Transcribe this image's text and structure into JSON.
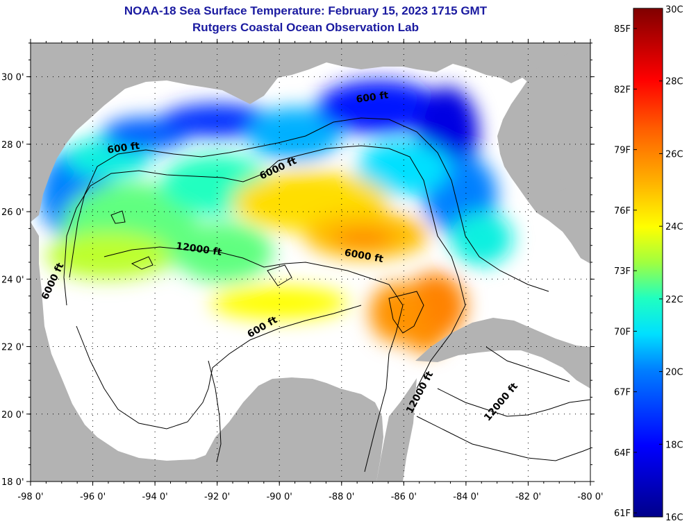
{
  "header": {
    "title": "NOAA-18 Sea Surface Temperature:  February 15, 2023 1715 GMT",
    "subtitle": "Rutgers Coastal Ocean Observation Lab"
  },
  "map": {
    "lon_range": [
      -98,
      -80
    ],
    "lat_range": [
      18,
      31
    ],
    "lon_ticks": [
      {
        "value": -98,
        "label": "-98 0'"
      },
      {
        "value": -96,
        "label": "-96 0'"
      },
      {
        "value": -94,
        "label": "-94 0'"
      },
      {
        "value": -92,
        "label": "-92 0'"
      },
      {
        "value": -90,
        "label": "-90 0'"
      },
      {
        "value": -88,
        "label": "-88 0'"
      },
      {
        "value": -86,
        "label": "-86 0'"
      },
      {
        "value": -84,
        "label": "-84 0'"
      },
      {
        "value": -82,
        "label": "-82 0'"
      },
      {
        "value": -80,
        "label": "-80 0'"
      }
    ],
    "lat_ticks": [
      {
        "value": 18,
        "label": "18 0'"
      },
      {
        "value": 20,
        "label": "20 0'"
      },
      {
        "value": 22,
        "label": "22 0'"
      },
      {
        "value": 24,
        "label": "24 0'"
      },
      {
        "value": 26,
        "label": "26 0'"
      },
      {
        "value": 28,
        "label": "28 0'"
      },
      {
        "value": 30,
        "label": "30 0'"
      }
    ],
    "land_color": "#b3b3b3",
    "no_data_color": "#ffffff",
    "contour_labels": [
      {
        "text": "600 ft",
        "lon": -95.0,
        "lat": 27.8,
        "angle": -8
      },
      {
        "text": "600 ft",
        "lon": -87.0,
        "lat": 29.3,
        "angle": -8
      },
      {
        "text": "6000 ft",
        "lon": -90.0,
        "lat": 27.2,
        "angle": -25
      },
      {
        "text": "12000 ft",
        "lon": -92.6,
        "lat": 24.8,
        "angle": 8
      },
      {
        "text": "6000 ft",
        "lon": -87.3,
        "lat": 24.6,
        "angle": 10
      },
      {
        "text": "6000 ft",
        "lon": -97.2,
        "lat": 23.9,
        "angle": -65
      },
      {
        "text": "600 ft",
        "lon": -90.5,
        "lat": 22.5,
        "angle": -30
      },
      {
        "text": "12000 ft",
        "lon": -85.4,
        "lat": 20.6,
        "angle": -62
      },
      {
        "text": "12000 ft",
        "lon": -82.8,
        "lat": 20.3,
        "angle": -50
      }
    ],
    "sst_patches": [
      {
        "lon": -96.5,
        "lat": 26.5,
        "rx": 1.2,
        "ry": 1.4,
        "temp": 20.0
      },
      {
        "lon": -95.5,
        "lat": 27.6,
        "rx": 1.4,
        "ry": 0.6,
        "temp": 21.5
      },
      {
        "lon": -94.3,
        "lat": 28.3,
        "rx": 1.4,
        "ry": 0.5,
        "temp": 19.5
      },
      {
        "lon": -92.0,
        "lat": 28.7,
        "rx": 1.8,
        "ry": 0.5,
        "temp": 18.8
      },
      {
        "lon": -89.5,
        "lat": 28.3,
        "rx": 1.5,
        "ry": 0.8,
        "temp": 20.5
      },
      {
        "lon": -86.8,
        "lat": 29.1,
        "rx": 2.0,
        "ry": 0.8,
        "temp": 18.3
      },
      {
        "lon": -84.6,
        "lat": 28.3,
        "rx": 1.0,
        "ry": 1.4,
        "temp": 17.5
      },
      {
        "lon": -84.2,
        "lat": 26.5,
        "rx": 1.2,
        "ry": 1.2,
        "temp": 20.0
      },
      {
        "lon": -86.0,
        "lat": 27.3,
        "rx": 1.5,
        "ry": 0.8,
        "temp": 21.0
      },
      {
        "lon": -94.8,
        "lat": 25.5,
        "rx": 2.2,
        "ry": 1.4,
        "temp": 22.5
      },
      {
        "lon": -95.5,
        "lat": 24.7,
        "rx": 2.0,
        "ry": 0.7,
        "temp": 23.3
      },
      {
        "lon": -92.0,
        "lat": 26.8,
        "rx": 1.8,
        "ry": 0.9,
        "temp": 22.0
      },
      {
        "lon": -91.8,
        "lat": 24.8,
        "rx": 1.6,
        "ry": 0.9,
        "temp": 22.5
      },
      {
        "lon": -89.0,
        "lat": 26.3,
        "rx": 2.5,
        "ry": 0.9,
        "temp": 24.5
      },
      {
        "lon": -87.2,
        "lat": 25.3,
        "rx": 2.0,
        "ry": 0.7,
        "temp": 25.0
      },
      {
        "lon": -87.3,
        "lat": 25.2,
        "rx": 1.0,
        "ry": 0.2,
        "temp": 26.3
      },
      {
        "lon": -90.0,
        "lat": 23.3,
        "rx": 2.2,
        "ry": 0.5,
        "temp": 24.0
      },
      {
        "lon": -85.0,
        "lat": 23.2,
        "rx": 1.0,
        "ry": 1.0,
        "temp": 26.0
      },
      {
        "lon": -86.2,
        "lat": 23.0,
        "rx": 0.9,
        "ry": 0.9,
        "temp": 25.7
      },
      {
        "lon": -85.3,
        "lat": 22.2,
        "rx": 0.6,
        "ry": 0.4,
        "temp": 25.8
      },
      {
        "lon": -83.5,
        "lat": 25.2,
        "rx": 1.0,
        "ry": 0.8,
        "temp": 21.5
      }
    ]
  },
  "colorbar": {
    "min_c": 16,
    "max_c": 30,
    "c_ticks": [
      {
        "value": 30,
        "label": "30C"
      },
      {
        "value": 28,
        "label": "28C"
      },
      {
        "value": 26,
        "label": "26C"
      },
      {
        "value": 24,
        "label": "24C"
      },
      {
        "value": 22,
        "label": "22C"
      },
      {
        "value": 20,
        "label": "20C"
      },
      {
        "value": 18,
        "label": "18C"
      },
      {
        "value": 16,
        "label": "16C"
      }
    ],
    "f_ticks": [
      {
        "value": 85,
        "label": "85F"
      },
      {
        "value": 82,
        "label": "82F"
      },
      {
        "value": 79,
        "label": "79F"
      },
      {
        "value": 76,
        "label": "76F"
      },
      {
        "value": 73,
        "label": "73F"
      },
      {
        "value": 70,
        "label": "70F"
      },
      {
        "value": 67,
        "label": "67F"
      },
      {
        "value": 64,
        "label": "64F"
      },
      {
        "value": 61,
        "label": "61F"
      }
    ]
  }
}
